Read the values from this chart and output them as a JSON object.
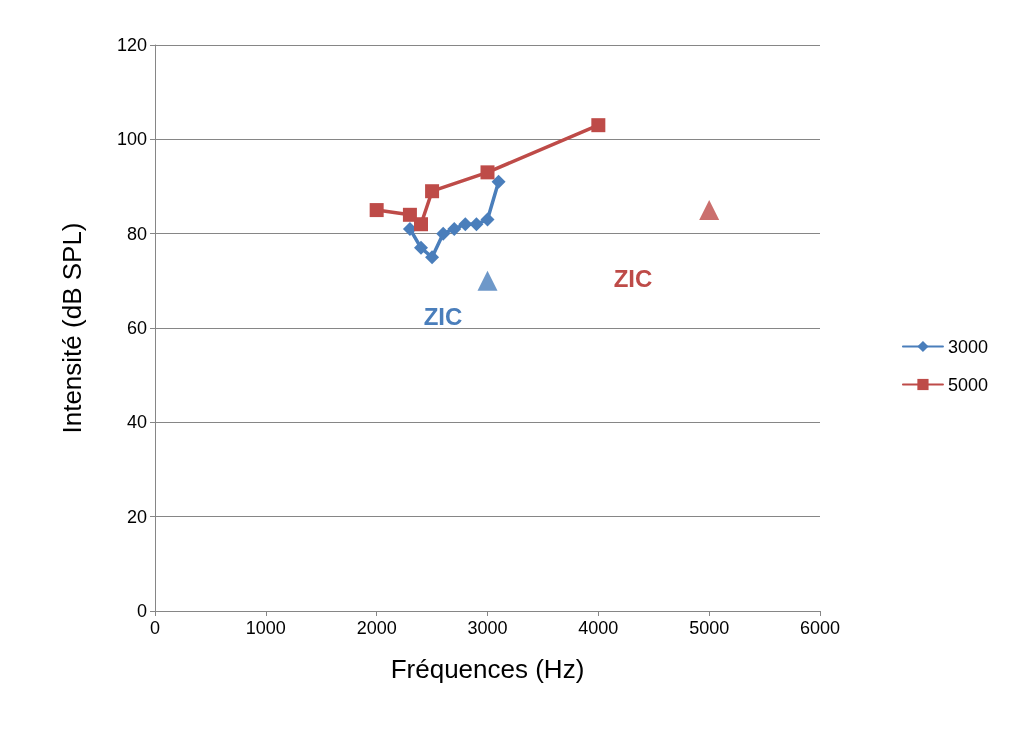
{
  "chart_data": {
    "type": "line",
    "xlabel": "Fréquences (Hz)",
    "ylabel": "Intensité (dB SPL)",
    "xlim": [
      0,
      6000
    ],
    "xticks": [
      0,
      1000,
      2000,
      3000,
      4000,
      5000,
      6000
    ],
    "ylim": [
      0,
      120
    ],
    "yticks": [
      0,
      20,
      40,
      60,
      80,
      100,
      120
    ],
    "grid": "y",
    "legend": "right",
    "series": [
      {
        "name": "3000",
        "color": "#4a7ebb",
        "marker": "diamond",
        "x": [
          2300,
          2400,
          2500,
          2600,
          2700,
          2800,
          2900,
          3000,
          3100
        ],
        "values": [
          81,
          77,
          75,
          80,
          81,
          82,
          82,
          83,
          91
        ]
      },
      {
        "name": "5000",
        "color": "#be4b48",
        "marker": "square",
        "x": [
          2000,
          2300,
          2400,
          2500,
          3000,
          4000
        ],
        "values": [
          85,
          84,
          82,
          89,
          93,
          103
        ]
      },
      {
        "type": "scatter",
        "color": "#4a7ebb",
        "marker": "triangle",
        "x": [
          3000
        ],
        "values": [
          70
        ]
      },
      {
        "type": "scatter",
        "color": "#be4b48",
        "marker": "triangle",
        "x": [
          5000
        ],
        "values": [
          85
        ]
      }
    ],
    "annotations": [
      "ZIC",
      "ZIC"
    ]
  }
}
